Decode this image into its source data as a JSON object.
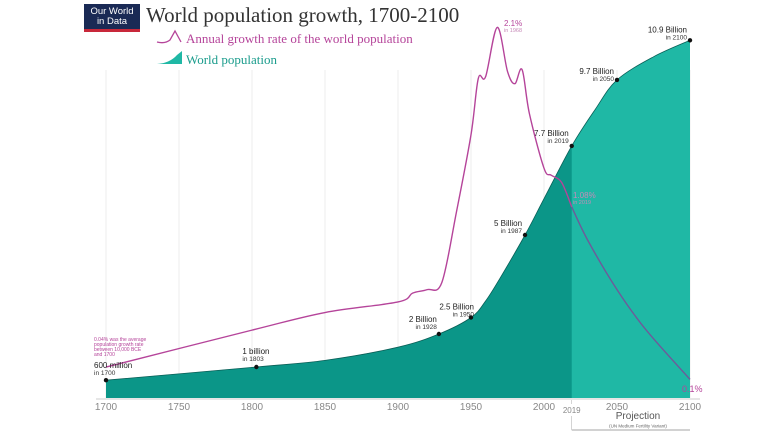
{
  "logo": {
    "line1": "Our World",
    "line2": "in Data"
  },
  "chart_data": {
    "type": "area",
    "title": "World population growth, 1700-2100",
    "legend": [
      {
        "name": "Annual growth rate of the world population",
        "color": "#b5449a",
        "placement": "top-left"
      },
      {
        "name": "World population",
        "color": "#1a9c8c",
        "placement": "top-left"
      }
    ],
    "xlim": [
      1700,
      2100
    ],
    "x_ticks": [
      "1700",
      "1750",
      "1800",
      "1850",
      "1900",
      "1950",
      "2000",
      "2050",
      "2100"
    ],
    "extra_tick": "2019",
    "grid": "vertical",
    "projection": {
      "start": 2019,
      "label": "Projection",
      "sublabel": "(UN Medium Fertility Variant)"
    },
    "colors": {
      "historical": "#0b9688",
      "projection": "#1fb8a5",
      "rate": "#b5449a",
      "rate_projection": "#6e5a9a"
    },
    "series": [
      {
        "name": "World population",
        "unit": "billion",
        "x": [
          1700,
          1803,
          1850,
          1900,
          1928,
          1950,
          1960,
          1970,
          1987,
          2000,
          2019,
          2035,
          2050,
          2075,
          2100
        ],
        "y": [
          0.6,
          1.0,
          1.2,
          1.6,
          2.0,
          2.5,
          3.0,
          3.7,
          5.0,
          6.1,
          7.7,
          8.8,
          9.7,
          10.4,
          10.9
        ]
      },
      {
        "name": "Annual growth rate of the world population",
        "unit": "%",
        "x": [
          1700,
          1800,
          1850,
          1900,
          1910,
          1920,
          1930,
          1940,
          1950,
          1955,
          1960,
          1968,
          1975,
          1980,
          1985,
          1990,
          2000,
          2005,
          2012,
          2019,
          2030,
          2050,
          2070,
          2100
        ],
        "y": [
          0.17,
          0.38,
          0.48,
          0.54,
          0.59,
          0.61,
          0.65,
          1.05,
          1.49,
          1.81,
          1.82,
          2.1,
          1.85,
          1.78,
          1.86,
          1.61,
          1.3,
          1.26,
          1.22,
          1.08,
          0.89,
          0.61,
          0.38,
          0.1
        ]
      }
    ],
    "annotations": {
      "population": [
        {
          "year": 1700,
          "value": 0.6,
          "label": "600 million",
          "sub": "in 1700"
        },
        {
          "year": 1803,
          "value": 1.0,
          "label": "1 billion",
          "sub": "in 1803"
        },
        {
          "year": 1928,
          "value": 2.0,
          "label": "2 Billion",
          "sub": "in 1928"
        },
        {
          "year": 1950,
          "value": 2.5,
          "label": "2.5 Billion",
          "sub": "in 1950"
        },
        {
          "year": 1987,
          "value": 5.0,
          "label": "5 Billion",
          "sub": "in 1987"
        },
        {
          "year": 2019,
          "value": 7.7,
          "label": "7.7 Billion",
          "sub": "in 2019"
        },
        {
          "year": 2050,
          "value": 9.7,
          "label": "9.7 Billion",
          "sub": "in 2050"
        },
        {
          "year": 2100,
          "value": 10.9,
          "label": "10.9 Billion",
          "sub": "in 2100"
        }
      ],
      "rate": [
        {
          "label": "2.1%",
          "sub": "in 1968"
        },
        {
          "label": "1.08%",
          "sub": "in 2019"
        },
        {
          "label": "0.1%"
        }
      ],
      "note": [
        "0.04% was the average",
        "population growth rate",
        "between 10,000 BCE",
        "and 1700"
      ]
    }
  }
}
